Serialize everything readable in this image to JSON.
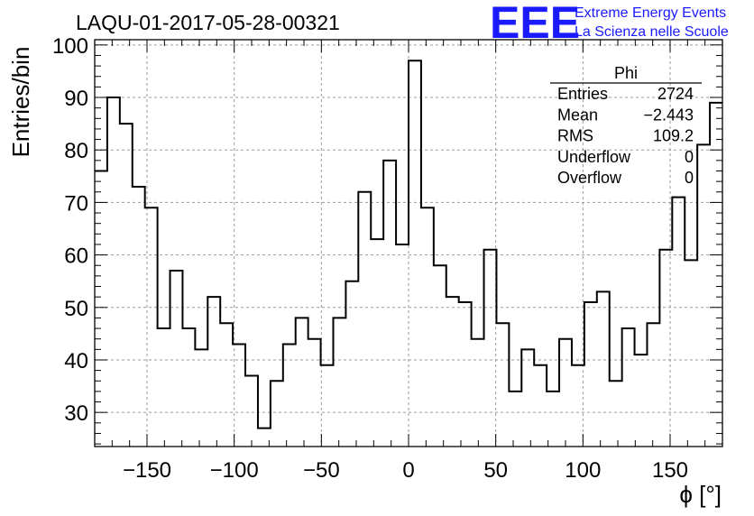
{
  "chart_data": {
    "type": "histogram",
    "title": "LAQU-01-2017-05-28-00321",
    "xlabel": "ϕ [°]",
    "ylabel": "Entries/bin",
    "xlim": [
      -180,
      180
    ],
    "ylim": [
      23.5,
      101
    ],
    "grid": true,
    "bin_width": 7.2,
    "x_ticks": [
      -150,
      -100,
      -50,
      0,
      50,
      100,
      150
    ],
    "x_tick_labels": [
      "−150",
      "−100",
      "−50",
      "0",
      "50",
      "100",
      "150"
    ],
    "y_ticks": [
      30,
      40,
      50,
      60,
      70,
      80,
      90,
      100
    ],
    "y_tick_labels": [
      "30",
      "40",
      "50",
      "60",
      "70",
      "80",
      "90",
      "100"
    ],
    "values": [
      76,
      90,
      85,
      73,
      69,
      46,
      57,
      46,
      42,
      52,
      47,
      43,
      37,
      27,
      36,
      43,
      48,
      44,
      39,
      48,
      55,
      72,
      63,
      78,
      62,
      97,
      69,
      58,
      52,
      51,
      44,
      61,
      47,
      34,
      42,
      39,
      34,
      44,
      39,
      51,
      53,
      36,
      46,
      41,
      47,
      61,
      71,
      59,
      81,
      89
    ],
    "stats_box": {
      "title": "Phi",
      "rows": [
        {
          "label": "Entries",
          "value": "2724"
        },
        {
          "label": "Mean",
          "value": "−2.443"
        },
        {
          "label": "RMS",
          "value": "109.2"
        },
        {
          "label": "Underflow",
          "value": "0"
        },
        {
          "label": "Overflow",
          "value": "0"
        }
      ]
    }
  },
  "logo": {
    "mark": "EEE",
    "line1": "Extreme Energy Events",
    "line2": "La Scienza nelle Scuole",
    "color": "#1a1aff"
  }
}
